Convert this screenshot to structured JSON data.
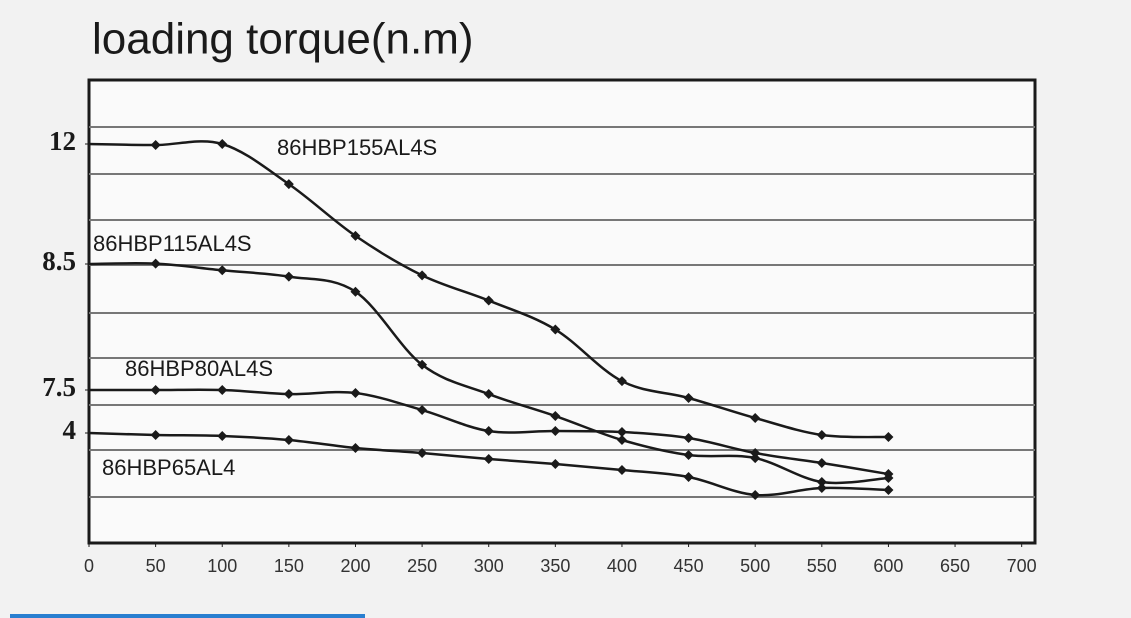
{
  "chart_data": {
    "type": "line",
    "title": "loading torque(n.m)",
    "x": [
      0,
      50,
      100,
      150,
      200,
      250,
      300,
      350,
      400,
      450,
      500,
      550,
      600
    ],
    "xlim": [
      0,
      710
    ],
    "xticks": [
      0,
      50,
      100,
      150,
      200,
      250,
      300,
      350,
      400,
      450,
      500,
      550,
      600,
      650,
      700
    ],
    "ylim": [
      -4.95,
      13.87
    ],
    "yticks": [
      4,
      7.5,
      8.5,
      12
    ],
    "series": [
      {
        "name": "86HBP155AL4S",
        "color": "#1a1a1a",
        "values": [
          12,
          11.97,
          12,
          10.83,
          9.32,
          8.41,
          8.21,
          7.98,
          7.57,
          6.85,
          5.22,
          3.84,
          3.67
        ]
      },
      {
        "name": "86HBP115AL4S",
        "color": "#1a1a1a",
        "values": [
          8.5,
          8.51,
          8.45,
          8.4,
          8.28,
          7.7,
          7.17,
          5.38,
          3.43,
          2.21,
          1.96,
          0.01,
          0.34
        ]
      },
      {
        "name": "86HBP80AL4S",
        "color": "#1a1a1a",
        "values": [
          7.5,
          7.5,
          7.5,
          7.17,
          7.26,
          5.87,
          4.16,
          4.16,
          4.08,
          3.59,
          2.37,
          1.56,
          0.66
        ]
      },
      {
        "name": "86HBP65AL4",
        "color": "#1a1a1a",
        "values": [
          4,
          3.84,
          3.76,
          3.43,
          2.78,
          2.37,
          1.88,
          1.48,
          0.99,
          0.42,
          -1.04,
          -0.48,
          -0.64
        ]
      }
    ]
  }
}
